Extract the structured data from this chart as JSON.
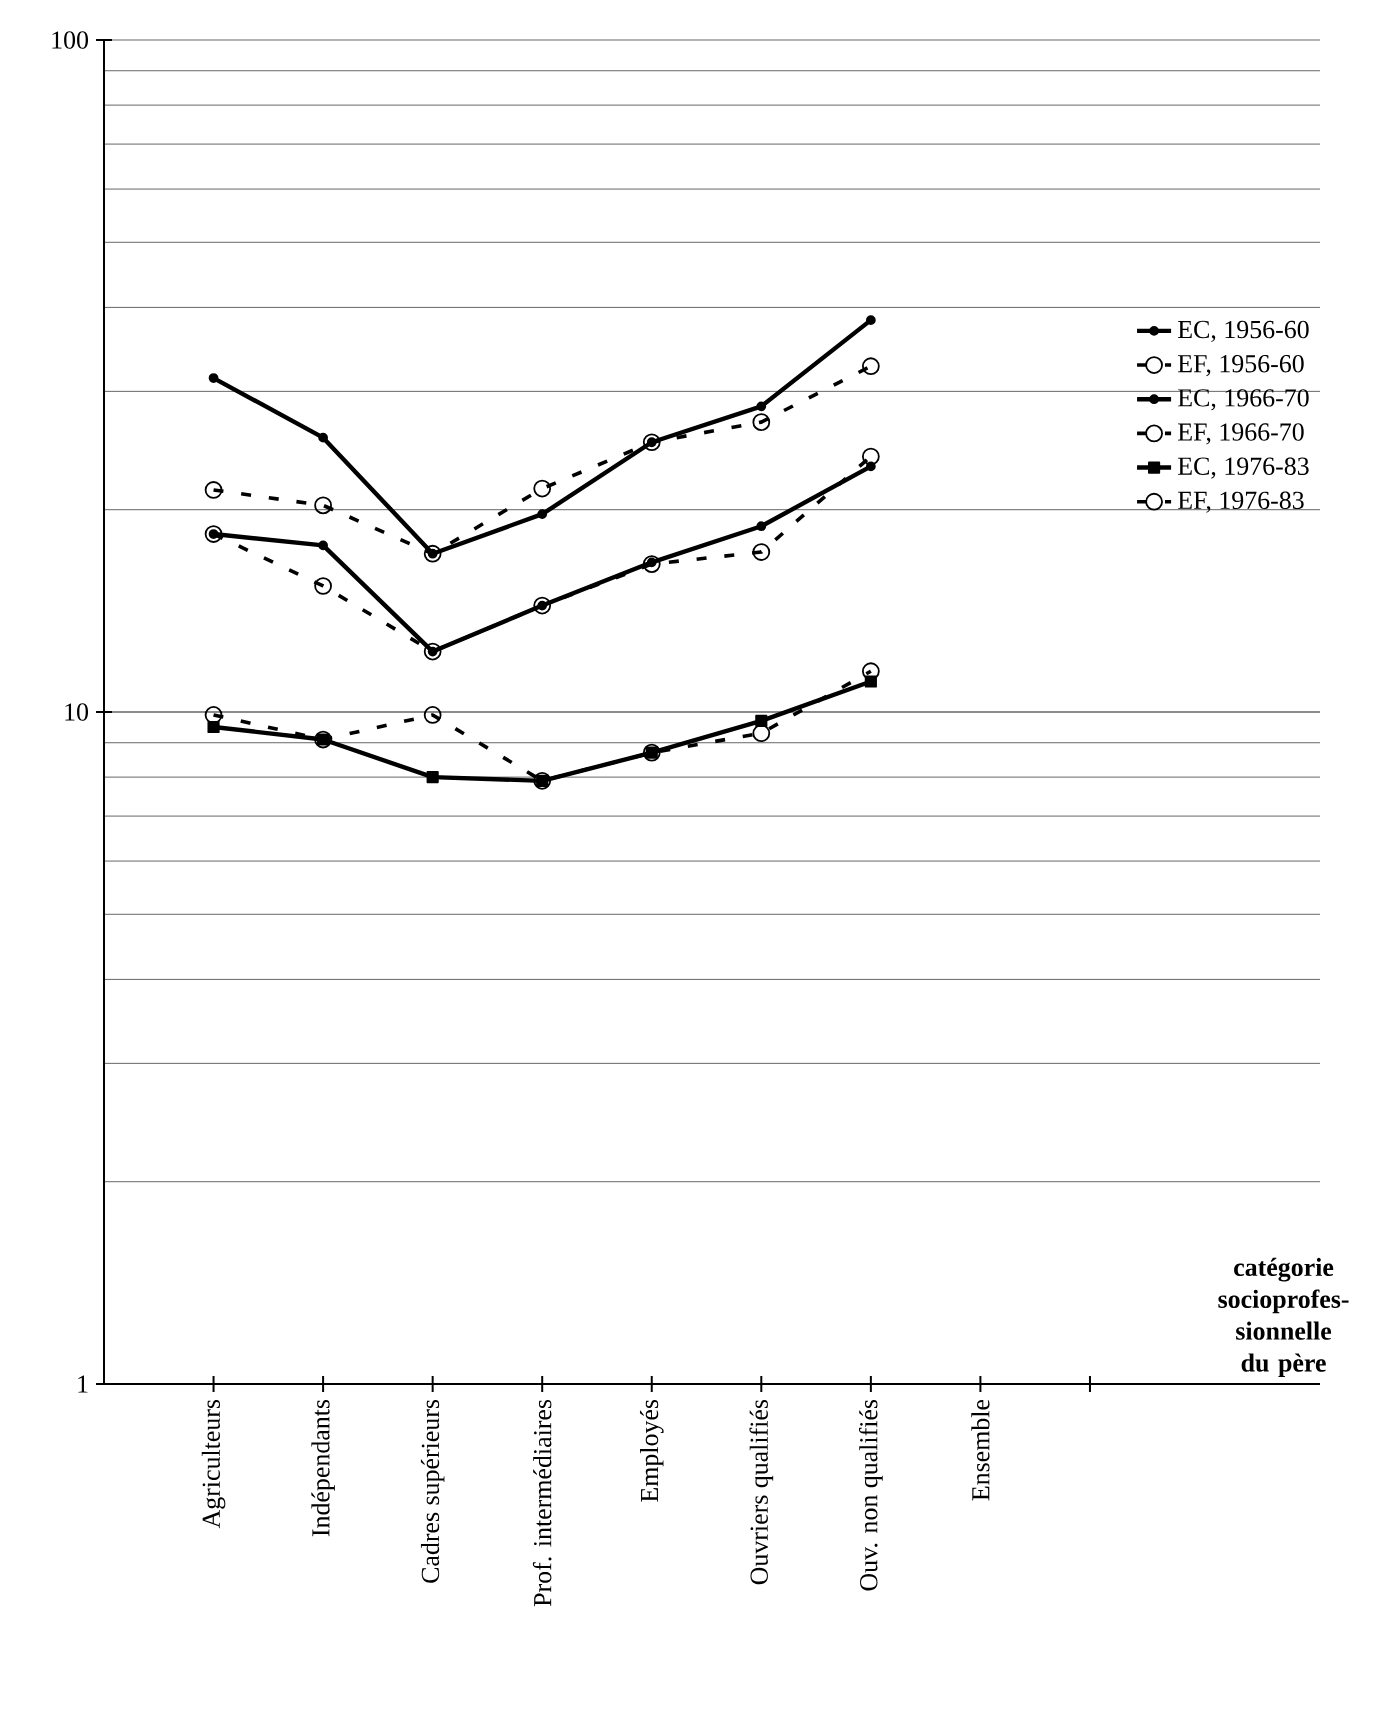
{
  "chart_data": {
    "type": "line",
    "xlabel": "catégorie socioprofes- sionnelle du père",
    "categories": [
      "Agriculteurs",
      "Indépendants",
      "Cadres supérieurs",
      "Prof. intermédiaires",
      "Employés",
      "Ouvriers qualifiés",
      "Ouv. non qualifiés",
      "Ensemble",
      null
    ],
    "log": "y",
    "ylim": [
      1,
      100
    ],
    "yticks": [
      1,
      10,
      100
    ],
    "grid": "y",
    "legend": "right",
    "series": [
      {
        "name": "EC, 1956-60",
        "color": "#000000",
        "marker": "circle",
        "line_style": "solid",
        "values": [
          31.4,
          25.6,
          17.2,
          19.7,
          25.2,
          28.5,
          38.3,
          null,
          null
        ]
      },
      {
        "name": "EF, 1956-60",
        "color": "#000000",
        "marker": "circle",
        "line_style": "dashed",
        "values": [
          21.4,
          20.3,
          17.2,
          21.5,
          25.2,
          27,
          32.7,
          null,
          null
        ]
      },
      {
        "name": "EC, 1966-70",
        "color": "#000000",
        "marker": "circle",
        "line_style": "solid",
        "values": [
          18.4,
          17.7,
          12.3,
          14.4,
          16.7,
          18.9,
          23.2,
          null,
          null
        ]
      },
      {
        "name": "EF, 1966-70",
        "color": "#000000",
        "marker": "circle",
        "line_style": "dashed",
        "values": [
          18.4,
          15.4,
          12.3,
          14.4,
          16.6,
          17.3,
          24,
          null,
          null
        ]
      },
      {
        "name": "EC, 1976-83",
        "color": "#000000",
        "marker": "square",
        "line_style": "solid",
        "values": [
          9.5,
          9.1,
          8,
          7.9,
          8.7,
          9.7,
          11.1,
          null,
          null
        ]
      },
      {
        "name": "EF, 1976-83",
        "color": "#000000",
        "marker": "circle",
        "line_style": "dashed",
        "values": [
          9.9,
          9.1,
          9.9,
          7.9,
          8.7,
          9.3,
          11.5,
          null,
          null
        ]
      }
    ]
  }
}
